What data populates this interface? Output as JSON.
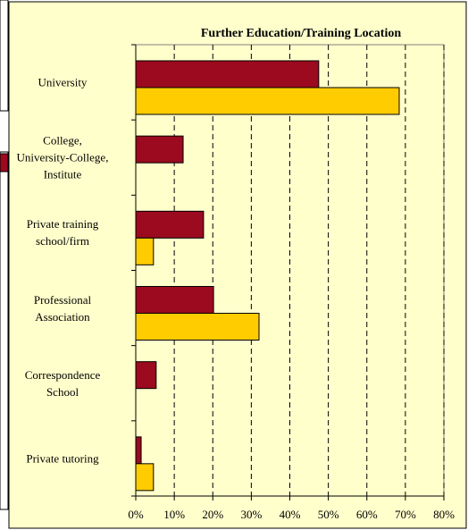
{
  "chart_data": {
    "type": "barh",
    "title": "Further Education/Training Location",
    "categories": [
      "University",
      "College,\nUniversity-College,\nInstitute",
      "Private training\nschool/firm",
      "Professional\nAssociation",
      "Correspondence\nSchool",
      "Private tutoring"
    ],
    "series": [
      {
        "color": "#9b0a1e",
        "values": [
          47.5,
          12.3,
          17.6,
          20.2,
          5.3,
          1.4
        ]
      },
      {
        "color": "#ffcc00",
        "values": [
          68.4,
          null,
          4.6,
          32,
          null,
          4.6
        ]
      }
    ],
    "xlim": [
      0,
      80
    ],
    "xticks": [
      {
        "value": 0,
        "label": "0%"
      },
      {
        "value": 10,
        "label": "10%"
      },
      {
        "value": 20,
        "label": "20%"
      },
      {
        "value": 30,
        "label": "30%"
      },
      {
        "value": 40,
        "label": "40%"
      },
      {
        "value": 50,
        "label": "50%"
      },
      {
        "value": 60,
        "label": "60%"
      },
      {
        "value": 70,
        "label": "70%"
      },
      {
        "value": 80,
        "label": "80%"
      }
    ],
    "grid": true
  }
}
